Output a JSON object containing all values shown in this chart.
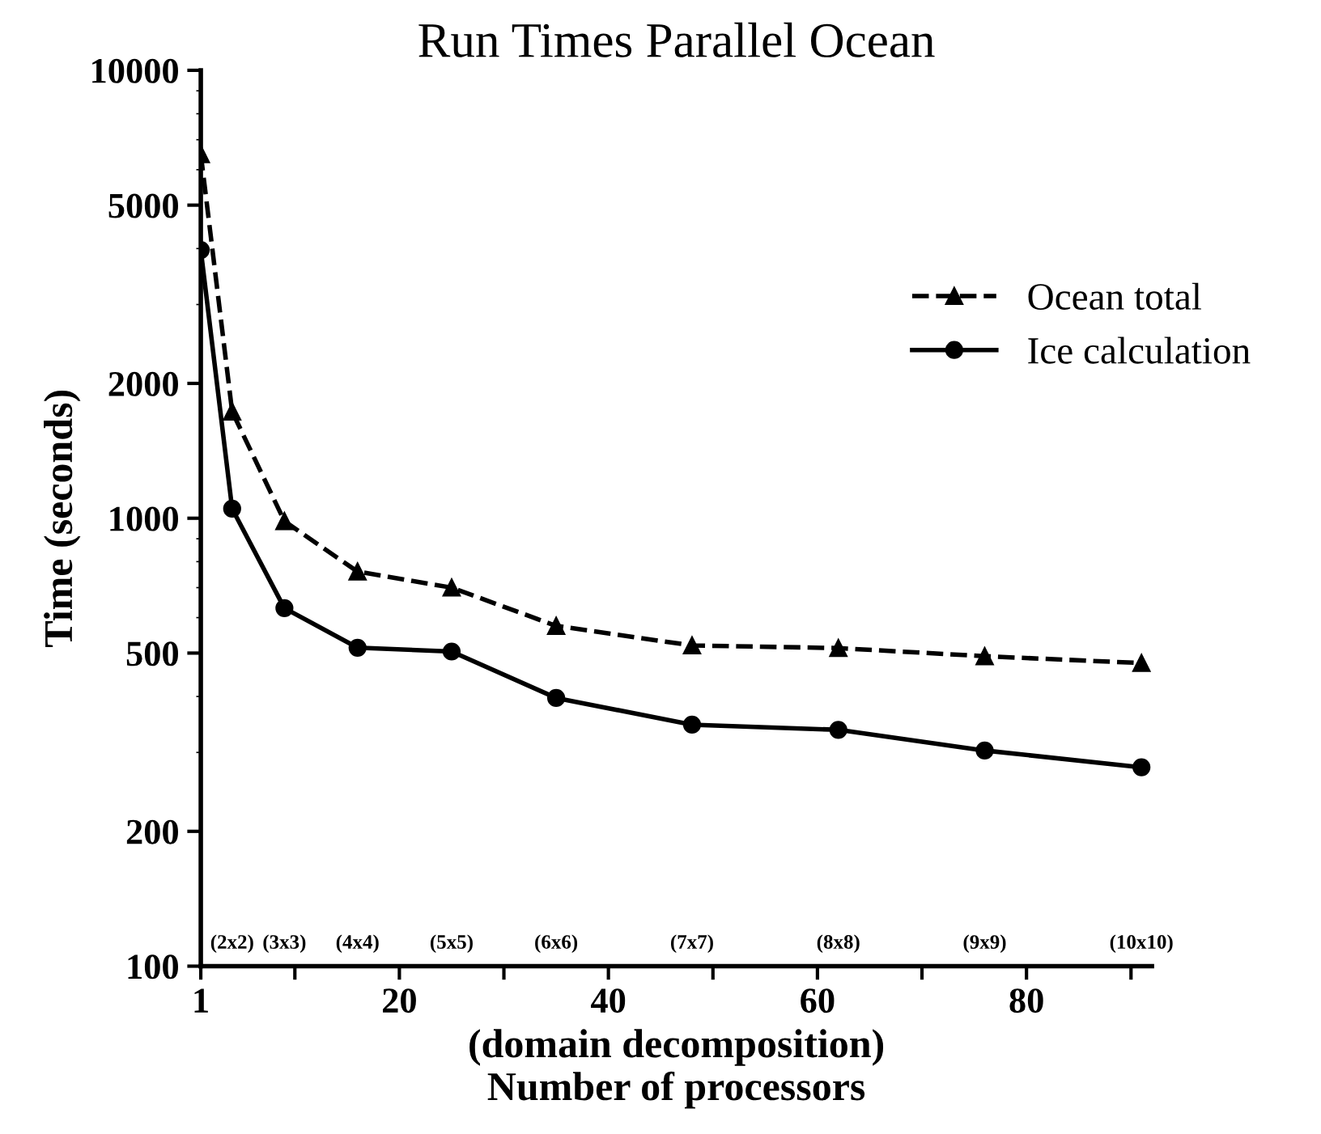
{
  "chart_data": {
    "type": "line",
    "title": "Run Times Parallel Ocean",
    "xlabel": "(domain decomposition)\nNumber of processors",
    "ylabel": "Time (seconds)",
    "x": [
      1,
      4,
      9,
      16,
      25,
      35,
      48,
      62,
      76,
      91
    ],
    "series": [
      {
        "name": "Ocean total",
        "color": "#000000",
        "marker": "triangle",
        "line_style": "dashed",
        "values": [
          6500,
          1730,
          985,
          760,
          700,
          575,
          520,
          513,
          492,
          475
        ]
      },
      {
        "name": "Ice calculation",
        "color": "#000000",
        "marker": "circle",
        "line_style": "solid",
        "values": [
          3970,
          1050,
          630,
          514,
          504,
          397,
          346,
          337,
          303,
          278
        ]
      }
    ],
    "log": "y",
    "xlim": [
      1,
      92
    ],
    "ylim": [
      100,
      10000
    ],
    "xticks": [
      1,
      {
        "value": 10,
        "label": null
      },
      20,
      {
        "value": 30,
        "label": null
      },
      40,
      {
        "value": 50,
        "label": null
      },
      60,
      {
        "value": 70,
        "label": null
      },
      80,
      {
        "value": 90,
        "label": null
      }
    ],
    "yticks": [
      100,
      200,
      500,
      1000,
      2000,
      5000,
      10000
    ],
    "annotations": [
      "(2x2)",
      "(3x3)",
      "(4x4)",
      "(5x5)",
      "(6x6)",
      "(7x7)",
      "(8x8)",
      "(9x9)",
      "(10x10)"
    ],
    "grid": false,
    "legend": "upper right"
  }
}
